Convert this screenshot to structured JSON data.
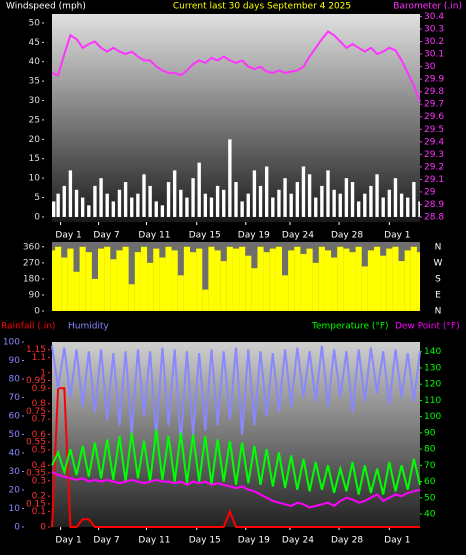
{
  "chart_data": [
    {
      "type": "bar",
      "title": "Current last 30 days September 4 2025",
      "x": [
        0,
        0.5,
        1,
        1.5,
        2,
        2.5,
        3,
        3.5,
        4,
        4.5,
        5,
        5.5,
        6,
        6.5,
        7,
        7.5,
        8,
        8.5,
        9,
        9.5,
        10,
        10.5,
        11,
        11.5,
        12,
        12.5,
        13,
        13.5,
        14,
        14.5,
        15,
        15.5,
        16,
        16.5,
        17,
        17.5,
        18,
        18.5,
        19,
        19.5,
        20,
        20.5,
        21,
        21.5,
        22,
        22.5,
        23,
        23.5,
        24,
        24.5,
        25,
        25.5,
        26,
        26.5,
        27,
        27.5,
        28,
        28.5,
        29,
        29.5,
        30
      ],
      "xlim": [
        0,
        30
      ],
      "xticks": [
        {
          "value": 0.7,
          "label": "Day 1"
        },
        {
          "value": 3.8,
          "label": "Day 7"
        },
        {
          "value": 7.7,
          "label": "Day 11"
        },
        {
          "value": 11.8,
          "label": "Day 15"
        },
        {
          "value": 15.8,
          "label": "Day 19"
        },
        {
          "value": 19.4,
          "label": "Day 24"
        },
        {
          "value": 23.4,
          "label": "Day 28"
        },
        {
          "value": 27.5,
          "label": "Day 1"
        }
      ],
      "ylim": [
        -1.3,
        52.3
      ],
      "yticks": [
        0,
        5,
        10,
        15,
        20,
        25,
        30,
        35,
        40,
        45,
        50
      ],
      "y2lim": [
        28.76,
        30.42
      ],
      "y2ticks": [
        28.8,
        28.9,
        29,
        29.1,
        29.2,
        29.3,
        29.4,
        29.5,
        29.6,
        29.7,
        29.8,
        29.9,
        30,
        30.1,
        30.2,
        30.3,
        30.4
      ],
      "series": [
        {
          "name": "Windspeed (mph)",
          "type": "bar",
          "color": "#ffffff",
          "values": [
            4,
            6,
            8,
            12,
            7,
            5,
            3,
            8,
            10,
            6,
            4,
            7,
            9,
            5,
            6,
            11,
            8,
            4,
            3,
            9,
            12,
            7,
            5,
            10,
            14,
            6,
            5,
            8,
            7,
            20,
            9,
            4,
            6,
            12,
            8,
            13,
            5,
            7,
            10,
            6,
            9,
            13,
            11,
            5,
            8,
            12,
            7,
            6,
            10,
            9,
            4,
            6,
            8,
            11,
            5,
            7,
            10,
            6,
            5,
            9,
            4
          ]
        },
        {
          "name": "Barometer (.in)",
          "type": "line",
          "axis": "y2",
          "color": "#ff33ff",
          "values": [
            29.95,
            29.93,
            30.1,
            30.25,
            30.22,
            30.15,
            30.18,
            30.2,
            30.15,
            30.12,
            30.15,
            30.12,
            30.1,
            30.12,
            30.08,
            30.05,
            30.05,
            30.0,
            29.97,
            29.95,
            29.95,
            29.93,
            29.97,
            30.02,
            30.05,
            30.03,
            30.07,
            30.05,
            30.08,
            30.05,
            30.03,
            30.05,
            30.0,
            29.98,
            30.0,
            29.96,
            29.95,
            29.97,
            29.95,
            29.96,
            29.97,
            30.0,
            30.08,
            30.15,
            30.22,
            30.28,
            30.25,
            30.2,
            30.15,
            30.18,
            30.15,
            30.12,
            30.15,
            30.1,
            30.12,
            30.15,
            30.13,
            30.05,
            29.95,
            29.85,
            29.72
          ]
        }
      ]
    },
    {
      "type": "bar",
      "x": [
        0,
        0.5,
        1,
        1.5,
        2,
        2.5,
        3,
        3.5,
        4,
        4.5,
        5,
        5.5,
        6,
        6.5,
        7,
        7.5,
        8,
        8.5,
        9,
        9.5,
        10,
        10.5,
        11,
        11.5,
        12,
        12.5,
        13,
        13.5,
        14,
        14.5,
        15,
        15.5,
        16,
        16.5,
        17,
        17.5,
        18,
        18.5,
        19,
        19.5,
        20,
        20.5,
        21,
        21.5,
        22,
        22.5,
        23,
        23.5,
        24,
        24.5,
        25,
        25.5,
        26,
        26.5,
        27,
        27.5,
        28,
        28.5,
        29,
        29.5,
        30
      ],
      "xlim": [
        0,
        30
      ],
      "ylim": [
        0,
        387
      ],
      "yticks": [
        0,
        90,
        180,
        270,
        360
      ],
      "compass_labels": [
        "N",
        "E",
        "S",
        "W",
        "N"
      ],
      "series": [
        {
          "type": "bar",
          "color": "#ffff00",
          "values": [
            340,
            360,
            300,
            350,
            220,
            360,
            330,
            180,
            350,
            360,
            290,
            340,
            360,
            150,
            330,
            360,
            270,
            350,
            300,
            360,
            340,
            200,
            360,
            330,
            350,
            120,
            360,
            340,
            280,
            360,
            350,
            360,
            310,
            240,
            360,
            330,
            350,
            360,
            200,
            340,
            360,
            320,
            350,
            270,
            360,
            340,
            300,
            360,
            350,
            330,
            360,
            250,
            340,
            360,
            310,
            350,
            360,
            280,
            340,
            360,
            330
          ]
        }
      ]
    },
    {
      "type": "line",
      "x": [
        0,
        0.5,
        1,
        1.5,
        2,
        2.5,
        3,
        3.5,
        4,
        4.5,
        5,
        5.5,
        6,
        6.5,
        7,
        7.5,
        8,
        8.5,
        9,
        9.5,
        10,
        10.5,
        11,
        11.5,
        12,
        12.5,
        13,
        13.5,
        14,
        14.5,
        15,
        15.5,
        16,
        16.5,
        17,
        17.5,
        18,
        18.5,
        19,
        19.5,
        20,
        20.5,
        21,
        21.5,
        22,
        22.5,
        23,
        23.5,
        24,
        24.5,
        25,
        25.5,
        26,
        26.5,
        27,
        27.5,
        28,
        28.5,
        29,
        29.5,
        30
      ],
      "xlim": [
        0,
        30
      ],
      "xticks": [
        {
          "value": 0.7,
          "label": "Day 1"
        },
        {
          "value": 3.8,
          "label": "Day 7"
        },
        {
          "value": 7.7,
          "label": "Day 11"
        },
        {
          "value": 11.8,
          "label": "Day 15"
        },
        {
          "value": 15.8,
          "label": "Day 19"
        },
        {
          "value": 19.4,
          "label": "Day 24"
        },
        {
          "value": 23.4,
          "label": "Day 28"
        },
        {
          "value": 27.5,
          "label": "Day 1"
        }
      ],
      "ylim": [
        0,
        100
      ],
      "yticks": [
        0,
        10,
        20,
        30,
        40,
        50,
        60,
        70,
        80,
        90,
        100
      ],
      "y2lim": [
        0,
        1.2
      ],
      "y2ticks": [
        0,
        0.1,
        0.15,
        0.2,
        0.3,
        0.35,
        0.4,
        0.5,
        0.55,
        0.6,
        0.7,
        0.75,
        0.8,
        0.9,
        0.95,
        1,
        1.1,
        1.15
      ],
      "y3lim": [
        32,
        146
      ],
      "y3ticks": [
        40,
        50,
        60,
        70,
        80,
        90,
        100,
        110,
        120,
        130,
        140
      ],
      "series": [
        {
          "name": "Rainfall (.in)",
          "axis": "y2",
          "color": "#ff0000",
          "values": [
            0,
            0.9,
            0.9,
            0,
            0,
            0.05,
            0.05,
            0,
            0,
            0,
            0,
            0,
            0,
            0,
            0,
            0,
            0,
            0,
            0,
            0,
            0,
            0,
            0,
            0,
            0,
            0,
            0,
            0,
            0,
            0.1,
            0,
            0,
            0,
            0,
            0,
            0,
            0,
            0,
            0,
            0,
            0,
            0,
            0,
            0,
            0,
            0,
            0,
            0,
            0,
            0,
            0,
            0,
            0,
            0,
            0,
            0,
            0,
            0,
            0,
            0,
            0
          ]
        },
        {
          "name": "Humidity",
          "axis": "y",
          "color": "#8888ff",
          "values": [
            98,
            75,
            97,
            70,
            96,
            65,
            95,
            62,
            96,
            58,
            94,
            55,
            95,
            50,
            96,
            60,
            95,
            48,
            97,
            55,
            96,
            45,
            95,
            50,
            94,
            52,
            96,
            55,
            95,
            58,
            97,
            50,
            96,
            55,
            95,
            60,
            94,
            62,
            96,
            65,
            97,
            70,
            95,
            68,
            98,
            65,
            96,
            70,
            95,
            62,
            96,
            68,
            97,
            72,
            95,
            66,
            96,
            70,
            94,
            68,
            95
          ]
        },
        {
          "name": "Temperature (°F)",
          "axis": "y3",
          "color": "#00ff00",
          "values": [
            70,
            78,
            66,
            80,
            64,
            82,
            63,
            84,
            62,
            86,
            61,
            88,
            60,
            90,
            62,
            85,
            60,
            92,
            61,
            88,
            60,
            90,
            59,
            89,
            60,
            88,
            58,
            86,
            60,
            85,
            58,
            84,
            59,
            82,
            58,
            80,
            57,
            78,
            56,
            76,
            55,
            74,
            54,
            72,
            55,
            70,
            53,
            68,
            54,
            72,
            52,
            70,
            53,
            68,
            52,
            72,
            54,
            70,
            55,
            74,
            58
          ]
        },
        {
          "name": "Dew Point (°F)",
          "axis": "y3",
          "color": "#ff00ff",
          "values": [
            66,
            64,
            63,
            62,
            61,
            62,
            60,
            61,
            60,
            61,
            60,
            59,
            60,
            61,
            60,
            59,
            60,
            61,
            60,
            60,
            59,
            60,
            58,
            60,
            59,
            60,
            58,
            59,
            58,
            57,
            56,
            57,
            55,
            54,
            52,
            50,
            48,
            47,
            46,
            45,
            47,
            46,
            44,
            45,
            46,
            47,
            45,
            48,
            50,
            49,
            47,
            48,
            50,
            52,
            48,
            50,
            52,
            51,
            53,
            54,
            55
          ]
        }
      ]
    }
  ]
}
